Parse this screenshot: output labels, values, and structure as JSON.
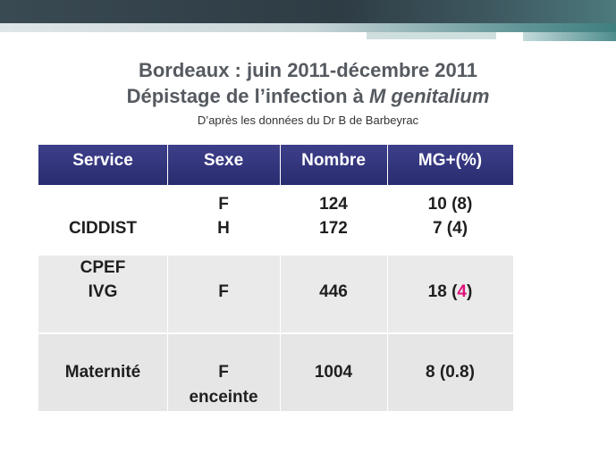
{
  "slide": {
    "title_line1": "Bordeaux : juin 2011-décembre 2011",
    "title_line2_prefix": "Dépistage de l’infection à ",
    "title_line2_italic": "M genitalium",
    "subtitle": "D’après les données du Dr B de Barbeyrac"
  },
  "table": {
    "headers": [
      "Service",
      "Sexe",
      "Nombre",
      "MG+(%)"
    ],
    "rows": [
      {
        "service": "CIDDIST",
        "sexe": [
          "F",
          "H"
        ],
        "nombre": [
          "124",
          "172"
        ],
        "mg": [
          "10 (8)",
          "7 (4)"
        ]
      },
      {
        "service": [
          "CPEF",
          "IVG"
        ],
        "sexe": "F",
        "nombre": "446",
        "mg_prefix": "18 (",
        "mg_highlight": "4",
        "mg_suffix": ")"
      },
      {
        "service": "Maternité",
        "sexe": [
          "F",
          "enceinte"
        ],
        "nombre": "1004",
        "mg": "8 (0.8)"
      }
    ]
  },
  "colors": {
    "header_bg": "#2f3178",
    "highlight": "#e0107a",
    "title": "#555a60"
  }
}
